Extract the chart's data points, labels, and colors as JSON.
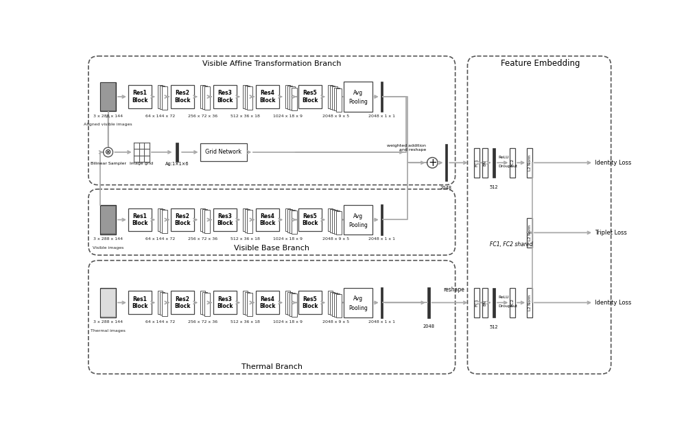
{
  "bg_color": "#ffffff",
  "branch1_title": "Visible Affine Transformation Branch",
  "branch2_title": "Visible Base Branch",
  "branch3_title": "Thermal Branch",
  "feature_title": "Feature Embedding",
  "res_blocks": [
    "Res1\nBlock",
    "Res2\nBlock",
    "Res3\nBlock",
    "Res4\nBlock",
    "Res5\nBlock"
  ],
  "dim_labels": [
    "3 x 288 x 144",
    "64 x 144 x 72",
    "256 x 72 x 36",
    "512 x 36 x 18",
    "1024 x 18 x 9",
    "2048 x 9 x 5",
    "2048 x 1 x 1"
  ],
  "sub_label_b1": "Aligned visible images",
  "sub_label_b2": "Visible images",
  "sub_label_b3": "Thermal images",
  "weighted_label": "weighted addition\nand reshape",
  "reshape_label": "reshape",
  "avg_pooling_label": "Avg\nPooling",
  "grid_network_label": "Grid Network",
  "bilinear_label": "Bilinear Sampler",
  "image_grid_label": "Image grid",
  "ag_label": "Aɡ:1×1×6",
  "shared_label": "FC1, FC2 shared",
  "loss1": "Identity Loss",
  "loss2": "Triplet Loss",
  "loss3": "Identity Loss",
  "label_2048": "2048",
  "label_512": "512"
}
